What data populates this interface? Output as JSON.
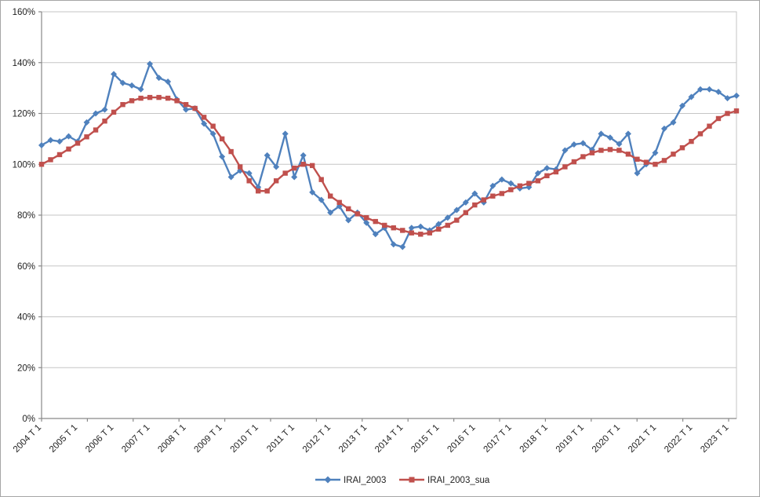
{
  "window": {
    "background_color": "#FFFFFF",
    "border_color": "#A6A6A6"
  },
  "chart_data": {
    "type": "line",
    "title": "",
    "grid": true,
    "legend_position": "bottom",
    "x_axis": {
      "start_label": "2004 T 1",
      "end_label": "2023 T 2",
      "points_per_year": 4,
      "tick_labels": [
        "2004 T 1",
        "2005 T 1",
        "2006 T 1",
        "2007 T 1",
        "2008 T 1",
        "2009 T 1",
        "2010 T 1",
        "2011 T 1",
        "2012 T 1",
        "2013 T 1",
        "2014 T 1",
        "2015 T 1",
        "2016 T 1",
        "2017 T 1",
        "2018 T 1",
        "2019 T 1",
        "2020 T 1",
        "2021 T 1",
        "2022 T 1",
        "2023 T 1"
      ]
    },
    "y_axis": {
      "min": 0,
      "max": 160,
      "step": 20,
      "format": "percent",
      "tick_labels": [
        "0%",
        "20%",
        "40%",
        "60%",
        "80%",
        "100%",
        "120%",
        "140%",
        "160%"
      ]
    },
    "colors": {
      "gridline": "#C6C6C6",
      "axis": "#898989",
      "text": "#1F1F1F"
    },
    "series": [
      {
        "name": "IRAI_2003",
        "color": "#4F81BD",
        "marker": "diamond",
        "values": [
          107.5,
          109.5,
          109,
          111,
          109,
          116.5,
          120,
          121.5,
          135.5,
          132,
          131,
          129.5,
          139.5,
          134,
          132.5,
          125.5,
          121.5,
          122,
          116,
          112,
          103,
          95,
          97.5,
          96.5,
          91,
          103.5,
          99,
          112,
          95,
          103.5,
          89,
          86,
          81,
          83.5,
          78,
          81,
          77,
          72.5,
          75,
          68.5,
          67.5,
          75,
          75.5,
          74,
          76.5,
          79,
          82,
          85,
          88.5,
          85,
          91.5,
          94,
          92.5,
          90.5,
          91,
          96.5,
          98.5,
          98,
          105.5,
          107.8,
          108.3,
          105.7,
          112,
          110.5,
          108,
          112,
          96.5,
          100,
          104.5,
          114,
          116.5,
          123,
          126.5,
          129.5,
          129.5,
          128.5,
          126,
          127
        ]
      },
      {
        "name": "IRAI_2003_sua",
        "color": "#C0504D",
        "marker": "square",
        "values": [
          100,
          101.8,
          103.8,
          106,
          108.3,
          110.8,
          113.5,
          117,
          120.5,
          123.5,
          125,
          126,
          126.3,
          126.3,
          126,
          125,
          123.5,
          122,
          118.5,
          115,
          110,
          105,
          99,
          93.5,
          89.5,
          89.5,
          93.5,
          96.5,
          98.5,
          100,
          99.5,
          94,
          87.5,
          85,
          82.5,
          80.5,
          79,
          77.5,
          76,
          75,
          74,
          73,
          72.5,
          73,
          74.5,
          76,
          78,
          81,
          84,
          86,
          87.5,
          88.5,
          90,
          91.5,
          92.5,
          93.5,
          95.5,
          97,
          99,
          101,
          103,
          104.5,
          105.5,
          105.8,
          105.5,
          104,
          102,
          100.8,
          100,
          101.5,
          104,
          106.5,
          109,
          112,
          115,
          118,
          120,
          121
        ]
      }
    ]
  }
}
